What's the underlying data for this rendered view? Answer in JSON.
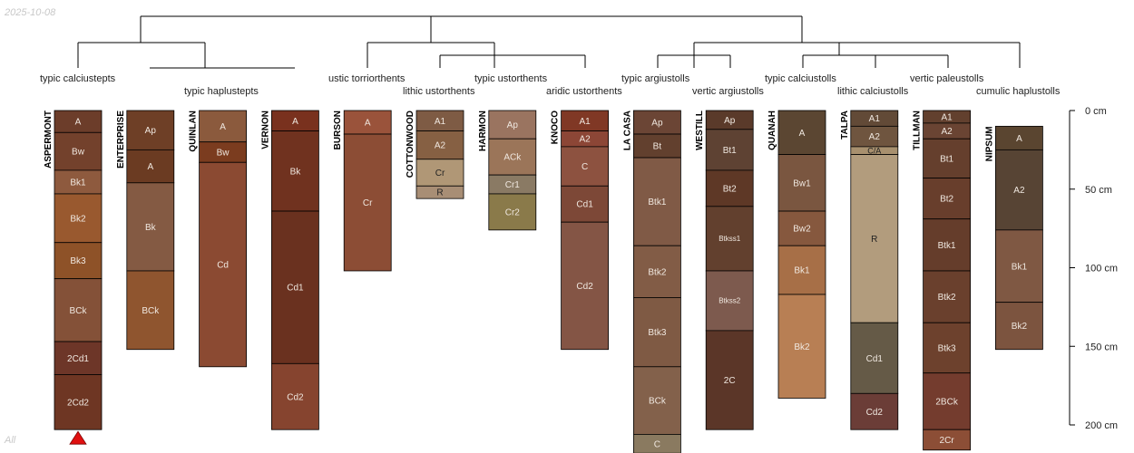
{
  "date_label": "2025-10-08",
  "footer_label": "All",
  "depth_axis": {
    "max_cm": 200,
    "ticks": [
      {
        "value": 0,
        "label": "0 cm"
      },
      {
        "value": 50,
        "label": "50 cm"
      },
      {
        "value": 100,
        "label": "100 cm"
      },
      {
        "value": 150,
        "label": "150 cm"
      },
      {
        "value": 200,
        "label": "200 cm"
      }
    ]
  },
  "tree_groups": [
    {
      "key": "g1",
      "label": "typic calciustepts"
    },
    {
      "key": "g2",
      "label": "typic haplustepts"
    },
    {
      "key": "g3",
      "label": "ustic torriorthents"
    },
    {
      "key": "g4",
      "label": "lithic ustorthents"
    },
    {
      "key": "g5",
      "label": "typic ustorthents"
    },
    {
      "key": "g6",
      "label": "aridic ustorthents"
    },
    {
      "key": "g7",
      "label": "typic argiustolls"
    },
    {
      "key": "g8",
      "label": "vertic argiustolls"
    },
    {
      "key": "g9",
      "label": "typic calciustolls"
    },
    {
      "key": "g10",
      "label": "lithic calciustolls"
    },
    {
      "key": "g11",
      "label": "vertic paleustolls"
    },
    {
      "key": "g12",
      "label": "cumulic haplustolls"
    }
  ],
  "profiles": [
    {
      "name": "ASPERMONT",
      "marker": true,
      "horizons": [
        {
          "name": "A",
          "top": 0,
          "bottom": 14,
          "color": "#6c3d2a"
        },
        {
          "name": "Bw",
          "top": 14,
          "bottom": 38,
          "color": "#73412c"
        },
        {
          "name": "Bk1",
          "top": 38,
          "bottom": 53,
          "color": "#8e5a3e"
        },
        {
          "name": "Bk2",
          "top": 53,
          "bottom": 84,
          "color": "#99592f"
        },
        {
          "name": "Bk3",
          "top": 84,
          "bottom": 107,
          "color": "#8e5228"
        },
        {
          "name": "BCk",
          "top": 107,
          "bottom": 147,
          "color": "#845138"
        },
        {
          "name": "2Cd1",
          "top": 147,
          "bottom": 168,
          "color": "#6d3628"
        },
        {
          "name": "2Cd2",
          "top": 168,
          "bottom": 203,
          "color": "#6e3623"
        }
      ]
    },
    {
      "name": "ENTERPRISE",
      "marker": false,
      "horizons": [
        {
          "name": "Ap",
          "top": 0,
          "bottom": 25,
          "color": "#6e3f26"
        },
        {
          "name": "A",
          "top": 25,
          "bottom": 46,
          "color": "#6b3b22"
        },
        {
          "name": "Bk",
          "top": 46,
          "bottom": 102,
          "color": "#845a43"
        },
        {
          "name": "BCk",
          "top": 102,
          "bottom": 152,
          "color": "#8f552f"
        }
      ]
    },
    {
      "name": "QUINLAN",
      "marker": false,
      "horizons": [
        {
          "name": "A",
          "top": 0,
          "bottom": 20,
          "color": "#8b5a3d"
        },
        {
          "name": "Bw",
          "top": 20,
          "bottom": 33,
          "color": "#7b3c1f"
        },
        {
          "name": "Cd",
          "top": 33,
          "bottom": 163,
          "color": "#8b4a32"
        }
      ]
    },
    {
      "name": "VERNON",
      "marker": false,
      "horizons": [
        {
          "name": "A",
          "top": 0,
          "bottom": 13,
          "color": "#79311e"
        },
        {
          "name": "Bk",
          "top": 13,
          "bottom": 64,
          "color": "#70321f"
        },
        {
          "name": "Cd1",
          "top": 64,
          "bottom": 161,
          "color": "#6a311f"
        },
        {
          "name": "Cd2",
          "top": 161,
          "bottom": 203,
          "color": "#86442f"
        }
      ]
    },
    {
      "name": "BURSON",
      "marker": false,
      "horizons": [
        {
          "name": "A",
          "top": 0,
          "bottom": 15,
          "color": "#9a533b"
        },
        {
          "name": "Cr",
          "top": 15,
          "bottom": 102,
          "color": "#8c4d35"
        }
      ]
    },
    {
      "name": "COTTONWOOD",
      "marker": false,
      "horizons": [
        {
          "name": "A1",
          "top": 0,
          "bottom": 13,
          "color": "#7e5b44"
        },
        {
          "name": "A2",
          "top": 13,
          "bottom": 31,
          "color": "#866043"
        },
        {
          "name": "Cr",
          "top": 31,
          "bottom": 48,
          "color": "#b09776"
        },
        {
          "name": "R",
          "top": 48,
          "bottom": 56,
          "color": "#a88e75"
        }
      ]
    },
    {
      "name": "HARMON",
      "marker": false,
      "horizons": [
        {
          "name": "Ap",
          "top": 0,
          "bottom": 18,
          "color": "#9a7460"
        },
        {
          "name": "ACk",
          "top": 18,
          "bottom": 41,
          "color": "#9b7559"
        },
        {
          "name": "Cr1",
          "top": 41,
          "bottom": 53,
          "color": "#8a7a64"
        },
        {
          "name": "Cr2",
          "top": 53,
          "bottom": 76,
          "color": "#8a7a4a"
        }
      ]
    },
    {
      "name": "KNOCO",
      "marker": false,
      "horizons": [
        {
          "name": "A1",
          "top": 0,
          "bottom": 13,
          "color": "#803825"
        },
        {
          "name": "A2",
          "top": 13,
          "bottom": 23,
          "color": "#8c4636"
        },
        {
          "name": "C",
          "top": 23,
          "bottom": 48,
          "color": "#8d5240"
        },
        {
          "name": "Cd1",
          "top": 48,
          "bottom": 71,
          "color": "#7d4837"
        },
        {
          "name": "Cd2",
          "top": 71,
          "bottom": 152,
          "color": "#845545"
        }
      ]
    },
    {
      "name": "LA CASA",
      "marker": false,
      "horizons": [
        {
          "name": "Ap",
          "top": 0,
          "bottom": 15,
          "color": "#6b4535"
        },
        {
          "name": "Bt",
          "top": 15,
          "bottom": 30,
          "color": "#62402e"
        },
        {
          "name": "Btk1",
          "top": 30,
          "bottom": 86,
          "color": "#805a46"
        },
        {
          "name": "Btk2",
          "top": 86,
          "bottom": 119,
          "color": "#825c46"
        },
        {
          "name": "Btk3",
          "top": 119,
          "bottom": 163,
          "color": "#7f5a44"
        },
        {
          "name": "BCk",
          "top": 163,
          "bottom": 206,
          "color": "#83614b"
        },
        {
          "name": "C",
          "top": 206,
          "bottom": 218,
          "color": "#8a7a60"
        }
      ]
    },
    {
      "name": "WESTILL",
      "marker": false,
      "horizons": [
        {
          "name": "Ap",
          "top": 0,
          "bottom": 12,
          "color": "#5a3a2a"
        },
        {
          "name": "Bt1",
          "top": 12,
          "bottom": 38,
          "color": "#5e4233"
        },
        {
          "name": "Bt2",
          "top": 38,
          "bottom": 61,
          "color": "#5e3826"
        },
        {
          "name": "Btkss1",
          "top": 61,
          "bottom": 102,
          "color": "#62402e"
        },
        {
          "name": "Btkss2",
          "top": 102,
          "bottom": 140,
          "color": "#7d5a4e"
        },
        {
          "name": "2C",
          "top": 140,
          "bottom": 203,
          "color": "#5b3628"
        }
      ]
    },
    {
      "name": "QUANAH",
      "marker": false,
      "horizons": [
        {
          "name": "A",
          "top": 0,
          "bottom": 28,
          "color": "#5b4632"
        },
        {
          "name": "Bw1",
          "top": 28,
          "bottom": 64,
          "color": "#7a5640"
        },
        {
          "name": "Bw2",
          "top": 64,
          "bottom": 86,
          "color": "#86583e"
        },
        {
          "name": "Bk1",
          "top": 86,
          "bottom": 117,
          "color": "#a76f47"
        },
        {
          "name": "Bk2",
          "top": 117,
          "bottom": 183,
          "color": "#b87f54"
        }
      ]
    },
    {
      "name": "TALPA",
      "marker": false,
      "horizons": [
        {
          "name": "A1",
          "top": 0,
          "bottom": 10,
          "color": "#624a37"
        },
        {
          "name": "A2",
          "top": 10,
          "bottom": 23,
          "color": "#6f553f"
        },
        {
          "name": "C/A",
          "top": 23,
          "bottom": 28,
          "color": "#a8906e"
        },
        {
          "name": "R",
          "top": 28,
          "bottom": 135,
          "color": "#b29c7d"
        },
        {
          "name": "Cd1",
          "top": 135,
          "bottom": 180,
          "color": "#655a47"
        },
        {
          "name": "Cd2",
          "top": 180,
          "bottom": 203,
          "color": "#6b3d37"
        }
      ]
    },
    {
      "name": "TILLMAN",
      "marker": false,
      "horizons": [
        {
          "name": "A1",
          "top": 0,
          "bottom": 8,
          "color": "#62402e"
        },
        {
          "name": "A2",
          "top": 8,
          "bottom": 18,
          "color": "#6a4433"
        },
        {
          "name": "Bt1",
          "top": 18,
          "bottom": 43,
          "color": "#653f2d"
        },
        {
          "name": "Bt2",
          "top": 43,
          "bottom": 69,
          "color": "#683e2c"
        },
        {
          "name": "Btk1",
          "top": 69,
          "bottom": 102,
          "color": "#653d2b"
        },
        {
          "name": "Btk2",
          "top": 102,
          "bottom": 135,
          "color": "#6a402d"
        },
        {
          "name": "Btk3",
          "top": 135,
          "bottom": 167,
          "color": "#6d412d"
        },
        {
          "name": "2BCk",
          "top": 167,
          "bottom": 203,
          "color": "#743c2e"
        },
        {
          "name": "2Cr",
          "top": 203,
          "bottom": 216,
          "color": "#8c4e36"
        }
      ]
    },
    {
      "name": "NIPSUM",
      "marker": false,
      "horizons": [
        {
          "name": "A",
          "top": 10,
          "bottom": 25,
          "color": "#5a4530"
        },
        {
          "name": "A2",
          "top": 25,
          "bottom": 76,
          "color": "#574434"
        },
        {
          "name": "Bk1",
          "top": 76,
          "bottom": 122,
          "color": "#7f5843"
        },
        {
          "name": "Bk2",
          "top": 122,
          "bottom": 152,
          "color": "#7c543f"
        }
      ]
    }
  ]
}
